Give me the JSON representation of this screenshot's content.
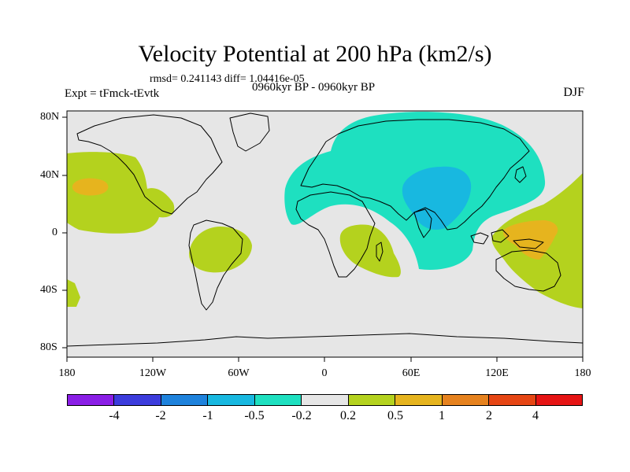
{
  "title": "Velocity Potential at 200 hPa (km2/s)",
  "stats": "rmsd= 0.241143 diff= 1.04416e-05",
  "expt": "Expt = tFmck-tEvtk",
  "period": "0960kyr BP - 0960kyr BP",
  "season": "DJF",
  "lat_labels": [
    "80N",
    "40N",
    "0",
    "40S",
    "80S"
  ],
  "lon_labels": [
    "180",
    "120W",
    "60W",
    "0",
    "60E",
    "120E",
    "180"
  ],
  "colorbar": {
    "colors": [
      "#8a1ee6",
      "#3c3cdc",
      "#1e82dc",
      "#18b8e0",
      "#1ee0c0",
      "#e6e6e6",
      "#b4d21e",
      "#e6b41e",
      "#e6821e",
      "#e64614",
      "#e61414"
    ],
    "labels": [
      "-4",
      "-2",
      "-1",
      "-0.5",
      "-0.2",
      "0.2",
      "0.5",
      "1",
      "2",
      "4"
    ]
  },
  "map": {
    "background": "#e6e6e6",
    "fill_colors": {
      "neg_small": "#1ee0c0",
      "neg_medium": "#18b8e0",
      "pos_small": "#b4d21e",
      "pos_medium": "#e6b41e"
    }
  }
}
